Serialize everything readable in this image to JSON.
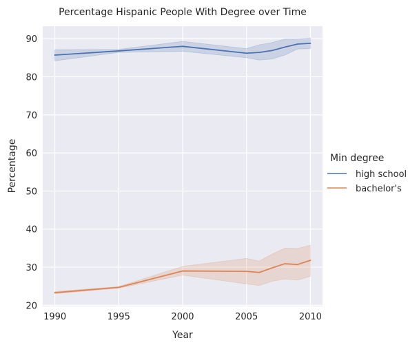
{
  "chart_data": {
    "type": "line",
    "title": "Percentage Hispanic People With Degree over Time",
    "xlabel": "Year",
    "ylabel": "Percentage",
    "xlim": [
      1989.05,
      2010.95
    ],
    "ylim": [
      19.7,
      93.3
    ],
    "xticks": [
      1990,
      1995,
      2000,
      2005,
      2010
    ],
    "yticks": [
      20,
      30,
      40,
      50,
      60,
      70,
      80,
      90
    ],
    "grid": true,
    "background": "#eaeaf2",
    "legend": {
      "title": "Min degree",
      "position": "right"
    },
    "series": [
      {
        "name": "high school",
        "color": "#4c72b0",
        "x": [
          1990,
          1995,
          2000,
          2005,
          2006,
          2007,
          2008,
          2009,
          2010
        ],
        "y": [
          85.7,
          86.8,
          88.0,
          86.2,
          86.4,
          86.9,
          87.8,
          88.6,
          88.8
        ],
        "ci_low": [
          84.2,
          86.4,
          86.7,
          85.0,
          84.4,
          84.7,
          85.7,
          87.3,
          87.4
        ],
        "ci_high": [
          87.1,
          87.2,
          89.3,
          87.4,
          88.4,
          89.0,
          89.9,
          89.9,
          90.2
        ]
      },
      {
        "name": "bachelor's",
        "color": "#dd8452",
        "x": [
          1990,
          1995,
          2000,
          2005,
          2006,
          2007,
          2008,
          2009,
          2010
        ],
        "y": [
          23.3,
          24.7,
          29.0,
          28.9,
          28.6,
          29.8,
          30.9,
          30.7,
          31.8
        ],
        "ci_low": [
          23.0,
          24.5,
          27.9,
          25.6,
          25.2,
          26.3,
          26.9,
          26.6,
          27.6
        ],
        "ci_high": [
          23.6,
          24.9,
          30.2,
          32.3,
          31.6,
          33.4,
          35.0,
          34.9,
          35.8
        ]
      }
    ]
  }
}
